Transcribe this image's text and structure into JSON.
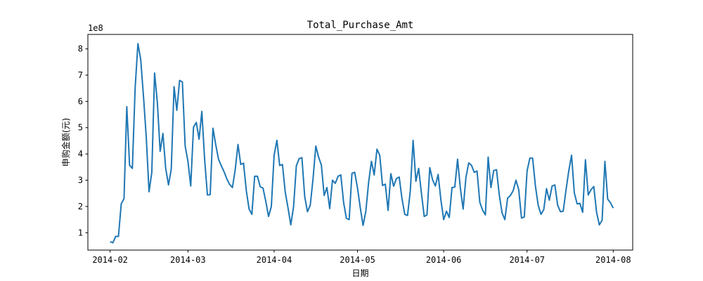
{
  "chart_data": {
    "type": "line",
    "title": "Total_Purchase_Amt",
    "xlabel": "日期",
    "ylabel": "申购金额(元)",
    "y_offset_label": "1e8",
    "x_start": "2014-02-01",
    "x_end": "2014-07-31",
    "xlim": [
      "2014-01-24",
      "2014-08-08"
    ],
    "ylim": [
      0.34,
      8.55
    ],
    "x_ticks": [
      "2014-02",
      "2014-03",
      "2014-04",
      "2014-05",
      "2014-06",
      "2014-07",
      "2014-08"
    ],
    "y_ticks": [
      1,
      2,
      3,
      4,
      5,
      6,
      7,
      8
    ],
    "grid": false,
    "legend": "none",
    "color": "#1f77b4",
    "series": [
      {
        "values": [
          0.66,
          0.62,
          0.86,
          0.86,
          2.1,
          2.3,
          5.8,
          3.57,
          3.45,
          6.5,
          8.2,
          7.6,
          6.2,
          4.65,
          2.56,
          3.3,
          7.08,
          5.95,
          4.1,
          4.78,
          3.45,
          2.82,
          3.42,
          6.56,
          5.66,
          6.8,
          6.74,
          4.3,
          3.72,
          2.78,
          5.02,
          5.2,
          4.56,
          5.62,
          3.8,
          2.44,
          2.45,
          4.98,
          4.35,
          3.8,
          3.55,
          3.32,
          3.05,
          2.84,
          2.72,
          3.4,
          4.36,
          3.6,
          3.65,
          2.6,
          1.9,
          1.7,
          3.15,
          3.15,
          2.75,
          2.7,
          2.2,
          1.62,
          2.0,
          3.95,
          4.52,
          3.56,
          3.6,
          2.55,
          1.95,
          1.3,
          2.0,
          3.55,
          3.82,
          3.86,
          2.38,
          1.8,
          2.05,
          3.05,
          4.3,
          3.88,
          3.58,
          2.42,
          2.72,
          1.92,
          3.0,
          2.88,
          3.15,
          3.2,
          2.15,
          1.55,
          1.5,
          3.26,
          3.3,
          2.7,
          1.95,
          1.28,
          1.82,
          2.92,
          3.72,
          3.2,
          4.18,
          3.95,
          2.8,
          2.85,
          1.85,
          3.25,
          2.77,
          3.06,
          3.12,
          2.3,
          1.7,
          1.66,
          2.6,
          4.52,
          2.96,
          3.45,
          2.5,
          1.62,
          1.68,
          3.48,
          3.02,
          2.78,
          3.22,
          2.25,
          1.5,
          1.82,
          1.58,
          2.72,
          2.74,
          3.8,
          2.7,
          1.9,
          3.1,
          3.66,
          3.57,
          3.3,
          3.35,
          2.16,
          1.86,
          1.68,
          3.88,
          2.72,
          3.37,
          3.4,
          2.45,
          1.76,
          1.5,
          2.32,
          2.42,
          2.6,
          3.0,
          2.64,
          1.56,
          1.6,
          3.35,
          3.84,
          3.84,
          2.78,
          2.05,
          1.7,
          1.88,
          2.68,
          2.24,
          2.78,
          2.82,
          2.05,
          1.8,
          1.82,
          2.62,
          3.35,
          3.95,
          2.52,
          2.1,
          2.12,
          1.78,
          3.78,
          2.44,
          2.64,
          2.76,
          1.78,
          1.3,
          1.48,
          3.72,
          2.28,
          2.14,
          1.94
        ]
      }
    ]
  }
}
